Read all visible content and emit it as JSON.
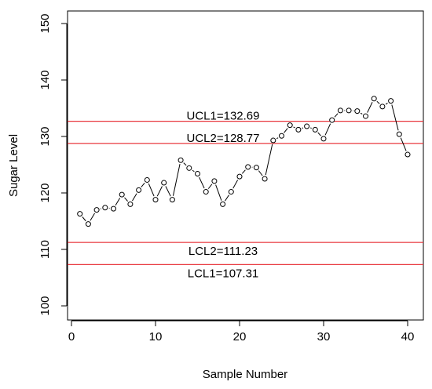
{
  "chart_data": {
    "type": "scatter",
    "title": "",
    "xlabel": "Sample Number",
    "ylabel": "Sugar Level",
    "xlim": [
      0,
      41.2
    ],
    "ylim": [
      98.2,
      152
    ],
    "x_ticks": [
      0,
      10,
      20,
      30,
      40
    ],
    "y_ticks": [
      100,
      110,
      120,
      130,
      140,
      150
    ],
    "grid": false,
    "colors": {
      "limit_line": "#e8373d",
      "points": "#000000",
      "frame": "#000000"
    },
    "series": [
      {
        "x": [
          1,
          2,
          3,
          4,
          5,
          6,
          7,
          8,
          9,
          10,
          11,
          12,
          13,
          14,
          15,
          16,
          17,
          18,
          19,
          20,
          21,
          22,
          23,
          24,
          25,
          26,
          27,
          28,
          29,
          30,
          31,
          32,
          33,
          34,
          35,
          36,
          37,
          38,
          39,
          40
        ],
        "values": [
          116.3,
          114.5,
          117.0,
          117.4,
          117.2,
          119.7,
          118.0,
          120.5,
          122.3,
          118.8,
          121.8,
          118.8,
          125.8,
          124.4,
          123.4,
          120.2,
          122.1,
          118.0,
          120.2,
          122.9,
          124.6,
          124.5,
          122.5,
          129.3,
          130.1,
          132.0,
          131.2,
          131.8,
          131.2,
          129.6,
          132.9,
          134.6,
          134.6,
          134.5,
          133.6,
          136.7,
          135.3,
          136.3,
          130.4,
          126.8
        ]
      }
    ],
    "control_limits": [
      {
        "label": "UCL1=132.69",
        "value": 132.69
      },
      {
        "label": "UCL2=128.77",
        "value": 128.77
      },
      {
        "label": "LCL2=111.23",
        "value": 111.23
      },
      {
        "label": "LCL1=107.31",
        "value": 107.31
      }
    ]
  }
}
